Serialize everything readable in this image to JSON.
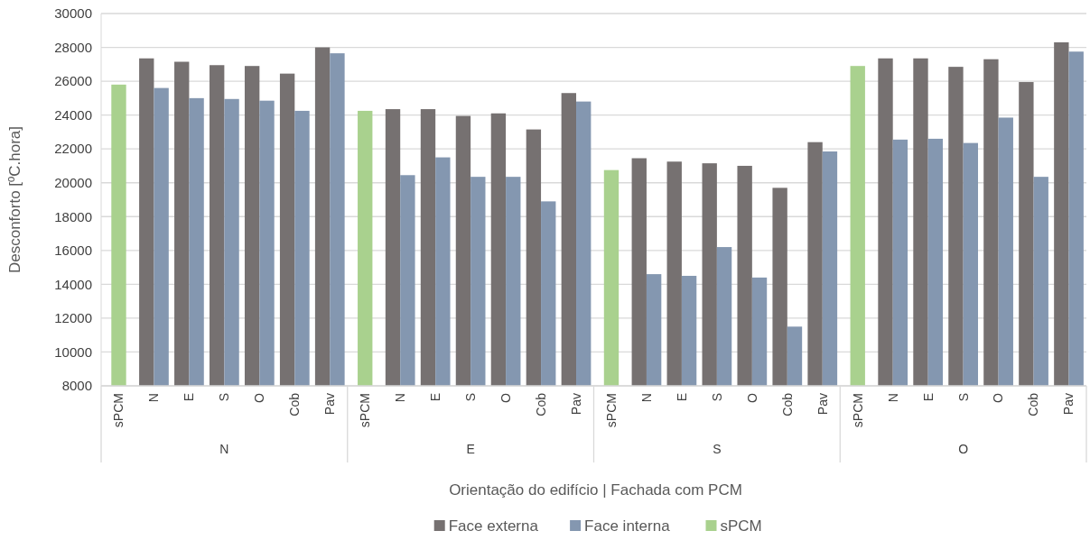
{
  "chart_data": {
    "type": "bar",
    "xlabel": "Orientação do edifício | Fachada com PCM",
    "ylabel": "Desconforto [ºC.hora]",
    "categories": [
      "sPCM",
      "N",
      "E",
      "S",
      "O",
      "Cob",
      "Pav",
      "sPCM",
      "N",
      "E",
      "S",
      "O",
      "Cob",
      "Pav",
      "sPCM",
      "N",
      "E",
      "S",
      "O",
      "Cob",
      "Pav",
      "sPCM",
      "N",
      "E",
      "S",
      "O",
      "Cob",
      "Pav"
    ],
    "annotations": [
      "N",
      "E",
      "S",
      "O"
    ],
    "series": [
      {
        "name": "Face externa",
        "color": "#767171",
        "values": [
          null,
          27350,
          27150,
          26950,
          26900,
          26450,
          28000,
          null,
          24350,
          24350,
          23950,
          24100,
          23150,
          25300,
          null,
          21450,
          21250,
          21150,
          21000,
          19700,
          22400,
          null,
          27350,
          27350,
          26850,
          27300,
          25950,
          28300
        ]
      },
      {
        "name": "Face interna",
        "color": "#8497b0",
        "values": [
          null,
          25600,
          25000,
          24950,
          24850,
          24250,
          27650,
          null,
          20450,
          21500,
          20350,
          20350,
          18900,
          24800,
          null,
          14600,
          14500,
          16200,
          14400,
          11500,
          21850,
          null,
          22550,
          22600,
          22350,
          23850,
          20350,
          27750
        ]
      },
      {
        "name": "sPCM",
        "color": "#a9d18e",
        "values": [
          25800,
          null,
          null,
          null,
          null,
          null,
          null,
          24250,
          null,
          null,
          null,
          null,
          null,
          null,
          20750,
          null,
          null,
          null,
          null,
          null,
          null,
          26900,
          null,
          null,
          null,
          null,
          null,
          null
        ]
      }
    ],
    "ylim": [
      8000,
      30000
    ],
    "yticks": [
      8000,
      10000,
      12000,
      14000,
      16000,
      18000,
      20000,
      22000,
      24000,
      26000,
      28000,
      30000
    ],
    "grid": "y",
    "legend": "bottom"
  }
}
